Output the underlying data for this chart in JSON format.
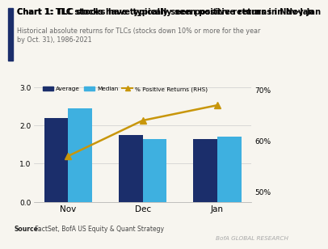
{
  "title": "Chart 1: TLC stocks have typically seen positive returns in Nov-Jan",
  "subtitle": "Historical absolute returns for TLCs (stocks down 10% or more for the year\nby Oct. 31), 1986-2021",
  "categories": [
    "Nov",
    "Dec",
    "Jan"
  ],
  "average": [
    2.2,
    1.75,
    1.65
  ],
  "median": [
    2.45,
    1.65,
    1.72
  ],
  "pct_positive": [
    57,
    64,
    67
  ],
  "bar_color_avg": "#1b2e6b",
  "bar_color_med": "#3eb0e0",
  "line_color": "#c8960a",
  "marker_color": "#c8960a",
  "left_ylim": [
    0.0,
    3.2
  ],
  "right_ylim": [
    48,
    72
  ],
  "left_yticks": [
    0.0,
    1.0,
    2.0,
    3.0
  ],
  "right_yticks": [
    50,
    60,
    70
  ],
  "source_bold": "Source:",
  "source_text": " FactSet, BofA US Equity & Quant Strategy",
  "branding": "BofA GLOBAL RESEARCH",
  "bg_color": "#f7f5ef",
  "title_bar_color": "#1b2e6b"
}
